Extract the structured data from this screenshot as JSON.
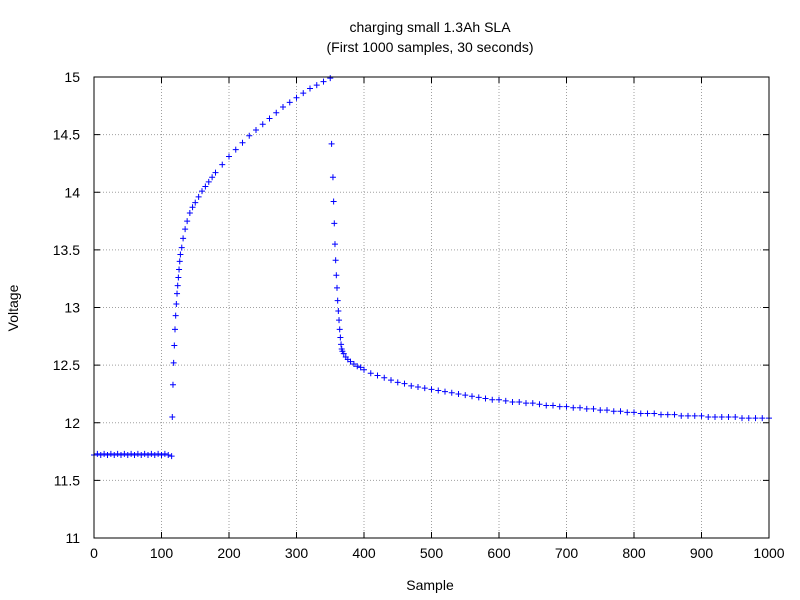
{
  "chart_data": {
    "type": "scatter",
    "title": "charging small 1.3Ah SLA",
    "subtitle": "(First 1000 samples, 30 seconds)",
    "xlabel": "Sample",
    "ylabel": "Voltage",
    "xlim": [
      0,
      1000
    ],
    "ylim": [
      11,
      15
    ],
    "x_ticks": [
      0,
      100,
      200,
      300,
      400,
      500,
      600,
      700,
      800,
      900,
      1000
    ],
    "y_ticks": [
      11,
      11.5,
      12,
      12.5,
      13,
      13.5,
      14,
      14.5,
      15
    ],
    "x_tick_labels": [
      "0",
      "100",
      "200",
      "300",
      "400",
      "500",
      "600",
      "700",
      "800",
      "900",
      "1000"
    ],
    "y_tick_labels": [
      "11",
      "11.5",
      "12",
      "12.5",
      "13",
      "13.5",
      "14",
      "14.5",
      "15"
    ],
    "grid": true,
    "legend": "none",
    "marker": "+",
    "series": [
      {
        "color": "#0000ff",
        "points": [
          [
            0,
            11.72
          ],
          [
            5,
            11.73
          ],
          [
            10,
            11.72
          ],
          [
            15,
            11.73
          ],
          [
            20,
            11.72
          ],
          [
            25,
            11.73
          ],
          [
            30,
            11.72
          ],
          [
            35,
            11.73
          ],
          [
            40,
            11.72
          ],
          [
            45,
            11.73
          ],
          [
            50,
            11.72
          ],
          [
            55,
            11.73
          ],
          [
            60,
            11.72
          ],
          [
            65,
            11.73
          ],
          [
            70,
            11.72
          ],
          [
            75,
            11.73
          ],
          [
            80,
            11.72
          ],
          [
            85,
            11.73
          ],
          [
            90,
            11.72
          ],
          [
            95,
            11.73
          ],
          [
            100,
            11.72
          ],
          [
            105,
            11.73
          ],
          [
            110,
            11.72
          ],
          [
            115,
            11.71
          ],
          [
            116,
            12.05
          ],
          [
            117,
            12.33
          ],
          [
            118,
            12.52
          ],
          [
            119,
            12.67
          ],
          [
            120,
            12.81
          ],
          [
            121,
            12.93
          ],
          [
            122,
            13.03
          ],
          [
            123,
            13.12
          ],
          [
            124,
            13.19
          ],
          [
            125,
            13.26
          ],
          [
            126,
            13.33
          ],
          [
            127,
            13.4
          ],
          [
            128,
            13.46
          ],
          [
            130,
            13.52
          ],
          [
            132,
            13.6
          ],
          [
            135,
            13.68
          ],
          [
            138,
            13.75
          ],
          [
            142,
            13.82
          ],
          [
            146,
            13.87
          ],
          [
            150,
            13.91
          ],
          [
            155,
            13.96
          ],
          [
            160,
            14.01
          ],
          [
            165,
            14.05
          ],
          [
            170,
            14.09
          ],
          [
            175,
            14.13
          ],
          [
            180,
            14.17
          ],
          [
            190,
            14.24
          ],
          [
            200,
            14.31
          ],
          [
            210,
            14.37
          ],
          [
            220,
            14.43
          ],
          [
            230,
            14.49
          ],
          [
            240,
            14.54
          ],
          [
            250,
            14.59
          ],
          [
            260,
            14.64
          ],
          [
            270,
            14.69
          ],
          [
            280,
            14.74
          ],
          [
            290,
            14.78
          ],
          [
            300,
            14.82
          ],
          [
            310,
            14.86
          ],
          [
            320,
            14.9
          ],
          [
            330,
            14.93
          ],
          [
            340,
            14.96
          ],
          [
            350,
            14.99
          ],
          [
            352,
            14.42
          ],
          [
            354,
            14.13
          ],
          [
            355,
            13.92
          ],
          [
            356,
            13.73
          ],
          [
            357,
            13.55
          ],
          [
            358,
            13.41
          ],
          [
            359,
            13.28
          ],
          [
            360,
            13.17
          ],
          [
            361,
            13.06
          ],
          [
            362,
            12.97
          ],
          [
            363,
            12.89
          ],
          [
            364,
            12.81
          ],
          [
            365,
            12.74
          ],
          [
            366,
            12.68
          ],
          [
            367,
            12.64
          ],
          [
            368,
            12.62
          ],
          [
            370,
            12.6
          ],
          [
            373,
            12.57
          ],
          [
            376,
            12.55
          ],
          [
            380,
            12.53
          ],
          [
            385,
            12.51
          ],
          [
            390,
            12.49
          ],
          [
            395,
            12.48
          ],
          [
            400,
            12.46
          ],
          [
            410,
            12.43
          ],
          [
            420,
            12.41
          ],
          [
            430,
            12.39
          ],
          [
            440,
            12.37
          ],
          [
            450,
            12.35
          ],
          [
            460,
            12.34
          ],
          [
            470,
            12.32
          ],
          [
            480,
            12.31
          ],
          [
            490,
            12.3
          ],
          [
            500,
            12.29
          ],
          [
            510,
            12.28
          ],
          [
            520,
            12.27
          ],
          [
            530,
            12.26
          ],
          [
            540,
            12.25
          ],
          [
            550,
            12.24
          ],
          [
            560,
            12.23
          ],
          [
            570,
            12.22
          ],
          [
            580,
            12.21
          ],
          [
            590,
            12.2
          ],
          [
            600,
            12.2
          ],
          [
            610,
            12.19
          ],
          [
            620,
            12.18
          ],
          [
            630,
            12.18
          ],
          [
            640,
            12.17
          ],
          [
            650,
            12.17
          ],
          [
            660,
            12.16
          ],
          [
            670,
            12.15
          ],
          [
            680,
            12.15
          ],
          [
            690,
            12.14
          ],
          [
            700,
            12.14
          ],
          [
            710,
            12.13
          ],
          [
            720,
            12.13
          ],
          [
            730,
            12.12
          ],
          [
            740,
            12.12
          ],
          [
            750,
            12.11
          ],
          [
            760,
            12.11
          ],
          [
            770,
            12.1
          ],
          [
            780,
            12.1
          ],
          [
            790,
            12.09
          ],
          [
            800,
            12.09
          ],
          [
            810,
            12.08
          ],
          [
            820,
            12.08
          ],
          [
            830,
            12.08
          ],
          [
            840,
            12.07
          ],
          [
            850,
            12.07
          ],
          [
            860,
            12.07
          ],
          [
            870,
            12.06
          ],
          [
            880,
            12.06
          ],
          [
            890,
            12.06
          ],
          [
            900,
            12.06
          ],
          [
            910,
            12.05
          ],
          [
            920,
            12.05
          ],
          [
            930,
            12.05
          ],
          [
            940,
            12.05
          ],
          [
            950,
            12.05
          ],
          [
            960,
            12.04
          ],
          [
            970,
            12.04
          ],
          [
            980,
            12.04
          ],
          [
            990,
            12.04
          ],
          [
            1000,
            12.04
          ]
        ]
      }
    ]
  }
}
